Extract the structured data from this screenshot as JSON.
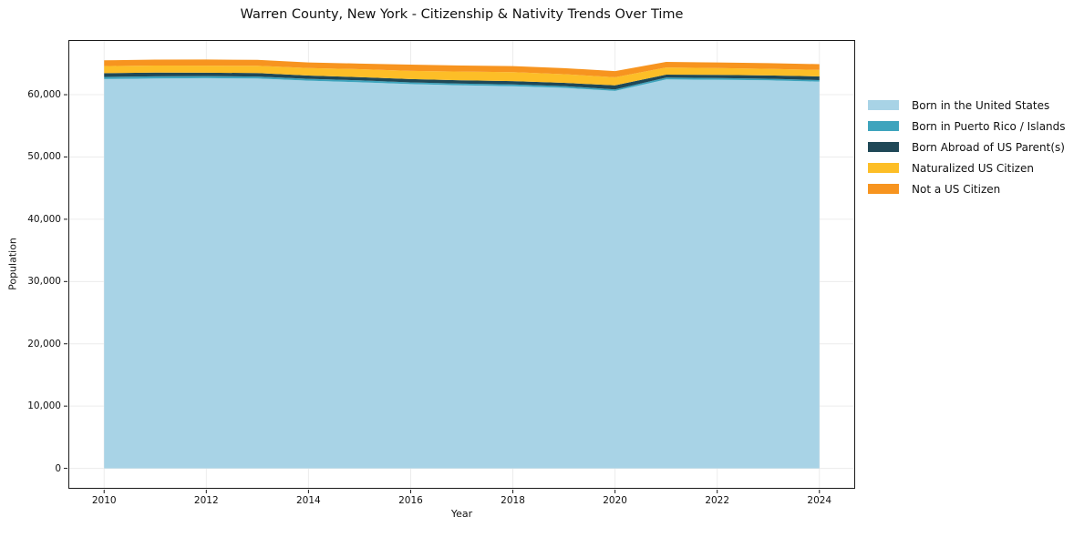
{
  "chart_data": {
    "type": "area",
    "stacked": true,
    "title": "Warren County, New York - Citizenship & Nativity Trends Over Time",
    "xlabel": "Year",
    "ylabel": "Population",
    "x": [
      2010,
      2011,
      2012,
      2013,
      2014,
      2015,
      2016,
      2017,
      2018,
      2019,
      2020,
      2021,
      2022,
      2023,
      2024
    ],
    "series": [
      {
        "name": "Born in the United States",
        "color": "#A8D3E6",
        "values": [
          62500,
          62600,
          62650,
          62600,
          62250,
          62000,
          61700,
          61500,
          61350,
          61100,
          60600,
          62450,
          62400,
          62300,
          62100
        ]
      },
      {
        "name": "Born in Puerto Rico / Islands",
        "color": "#3EA4BD",
        "values": [
          350,
          350,
          330,
          320,
          300,
          300,
          280,
          280,
          300,
          280,
          250,
          300,
          280,
          260,
          250
        ]
      },
      {
        "name": "Born Abroad of US Parent(s)",
        "color": "#1F4857",
        "values": [
          600,
          600,
          560,
          550,
          530,
          520,
          520,
          530,
          530,
          520,
          650,
          480,
          500,
          540,
          580
        ]
      },
      {
        "name": "Naturalized US Citizen",
        "color": "#FDBE27",
        "values": [
          1150,
          1130,
          1130,
          1170,
          1210,
          1280,
          1320,
          1400,
          1450,
          1400,
          1300,
          1150,
          1100,
          1050,
          1050
        ]
      },
      {
        "name": "Not a US Citizen",
        "color": "#F7941F",
        "values": [
          920,
          950,
          980,
          950,
          880,
          900,
          1000,
          980,
          960,
          970,
          980,
          880,
          900,
          920,
          920
        ]
      }
    ],
    "xlim": [
      2009.3,
      2024.7
    ],
    "ylim": [
      -3275,
      68775
    ],
    "x_ticks": [
      2010,
      2012,
      2014,
      2016,
      2018,
      2020,
      2022,
      2024
    ],
    "x_tick_labels": [
      "2010",
      "2012",
      "2014",
      "2016",
      "2018",
      "2020",
      "2022",
      "2024"
    ],
    "y_ticks": [
      0,
      10000,
      20000,
      30000,
      40000,
      50000,
      60000
    ],
    "y_tick_labels": [
      "0",
      "10,000",
      "20,000",
      "30,000",
      "40,000",
      "50,000",
      "60,000"
    ],
    "grid": true,
    "legend_position": "outside-right"
  }
}
